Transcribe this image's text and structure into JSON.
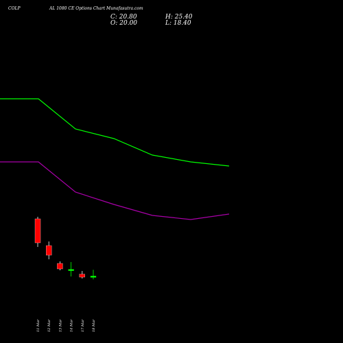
{
  "header": {
    "symbol": "COLP",
    "title": "AL 1080 CE Options Chart Munafasutra.com",
    "close_text": "C: 20.80",
    "open_text": "O: 20.00",
    "high_text": "H: 25.40",
    "low_text": "L: 18.40"
  },
  "chart_data": {
    "type": "candlestick",
    "background": "#000000",
    "up_color": "#00ff00",
    "down_color": "#ff0000",
    "candles": [
      {
        "date": "11 Mar",
        "open": 62.5,
        "high": 64.0,
        "low": 42.0,
        "close": 45.0
      },
      {
        "date": "12 Mar",
        "open": 43.0,
        "high": 46.0,
        "low": 33.0,
        "close": 36.0
      },
      {
        "date": "13 Mar",
        "open": 30.0,
        "high": 31.5,
        "low": 25.0,
        "close": 26.0
      },
      {
        "date": "14 Mar",
        "open": 25.4,
        "high": 31.0,
        "low": 20.5,
        "close": 25.7
      },
      {
        "date": "17 Mar",
        "open": 22.2,
        "high": 24.5,
        "low": 19.0,
        "close": 20.0
      },
      {
        "date": "18 Mar",
        "open": 20.0,
        "high": 25.4,
        "low": 18.4,
        "close": 20.8
      }
    ],
    "overlay_lines": [
      {
        "color": "#00ff00",
        "values": [
          150,
          150,
          128,
          121,
          109,
          104,
          101
        ]
      },
      {
        "color": "#aa00aa",
        "values": [
          104,
          104,
          82,
          73,
          65,
          62,
          66
        ]
      }
    ],
    "ylim": [
      0,
      175
    ]
  }
}
